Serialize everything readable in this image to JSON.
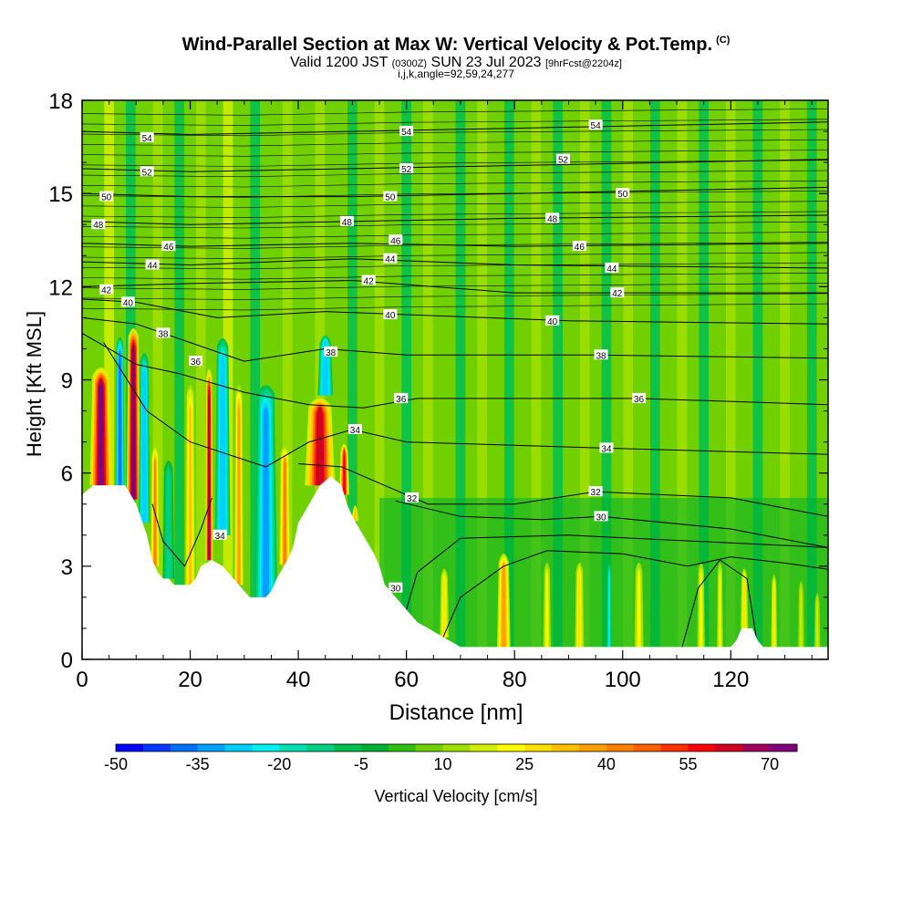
{
  "title": "Wind-Parallel Section at Max W: Vertical Velocity & Pot.Temp.",
  "title_mark": "(C)",
  "subtitle_pre": "Valid 1200 JST",
  "subtitle_small1": "(0300Z)",
  "subtitle_main": "SUN 23 Jul 2023",
  "subtitle_small2": "[9hrFcst@2204z]",
  "subtitle3": "i,j,k,angle=92,59,24,277",
  "chart_data": {
    "type": "heatmap",
    "xlabel": "Distance [nm]",
    "ylabel": "Height [Kft MSL]",
    "xlim": [
      0,
      138
    ],
    "ylim": [
      0,
      18
    ],
    "x_ticks": [
      0,
      20,
      40,
      60,
      80,
      100,
      120
    ],
    "y_ticks": [
      0,
      3,
      6,
      9,
      12,
      15,
      18
    ],
    "colorbar": {
      "label": "Vertical Velocity [cm/s]",
      "tick_labels": [
        -50,
        -35,
        -20,
        -5,
        10,
        25,
        40,
        55,
        70
      ],
      "levels": [
        -50,
        -45,
        -40,
        -35,
        -30,
        -25,
        -20,
        -15,
        -10,
        -5,
        0,
        5,
        10,
        15,
        20,
        25,
        30,
        35,
        40,
        45,
        50,
        55,
        60,
        65,
        70,
        75
      ],
      "colors": [
        "#0000ff",
        "#0038ff",
        "#0070ff",
        "#00a0ff",
        "#00d0ff",
        "#00f0f0",
        "#00e0b0",
        "#00d080",
        "#00c050",
        "#00b030",
        "#30c010",
        "#70d000",
        "#a0e000",
        "#d0f000",
        "#ffff00",
        "#ffe000",
        "#ffc000",
        "#ffa000",
        "#ff8000",
        "#ff6000",
        "#ff3000",
        "#ff0000",
        "#d00020",
        "#a00060",
        "#80007a"
      ]
    },
    "theta_contours": {
      "units": "potential temperature labels",
      "levels": [
        30,
        32,
        34,
        36,
        38,
        40,
        42,
        44,
        46,
        48,
        50,
        52,
        54
      ]
    },
    "terrain_kft": [
      [
        0,
        5.3
      ],
      [
        2,
        5.6
      ],
      [
        4,
        5.6
      ],
      [
        6,
        5.6
      ],
      [
        8,
        5.6
      ],
      [
        10,
        5.0
      ],
      [
        12,
        4.0
      ],
      [
        13,
        3.2
      ],
      [
        14,
        2.8
      ],
      [
        15,
        2.6
      ],
      [
        16,
        2.6
      ],
      [
        17,
        2.4
      ],
      [
        18,
        2.4
      ],
      [
        20,
        2.4
      ],
      [
        21,
        2.6
      ],
      [
        22,
        3.0
      ],
      [
        24,
        3.2
      ],
      [
        26,
        3.0
      ],
      [
        28,
        2.6
      ],
      [
        30,
        2.2
      ],
      [
        31,
        2.0
      ],
      [
        34,
        2.0
      ],
      [
        35,
        2.2
      ],
      [
        36,
        2.6
      ],
      [
        38,
        3.2
      ],
      [
        39,
        3.6
      ],
      [
        40,
        4.4
      ],
      [
        42,
        5.0
      ],
      [
        44,
        5.6
      ],
      [
        46,
        5.9
      ],
      [
        48,
        5.6
      ],
      [
        49,
        5.0
      ],
      [
        50,
        4.6
      ],
      [
        52,
        4.0
      ],
      [
        54,
        3.4
      ],
      [
        55,
        3.0
      ],
      [
        56,
        2.4
      ],
      [
        58,
        2.0
      ],
      [
        60,
        1.6
      ],
      [
        62,
        1.2
      ],
      [
        64,
        1.0
      ],
      [
        66,
        0.8
      ],
      [
        68,
        0.6
      ],
      [
        70,
        0.4
      ],
      [
        80,
        0.4
      ],
      [
        90,
        0.4
      ],
      [
        100,
        0.4
      ],
      [
        110,
        0.4
      ],
      [
        120,
        0.4
      ],
      [
        121,
        0.6
      ],
      [
        122,
        1.0
      ],
      [
        124,
        1.0
      ],
      [
        125,
        0.6
      ],
      [
        126,
        0.4
      ],
      [
        138,
        0.4
      ]
    ],
    "velocity_features": [
      {
        "x": 3.5,
        "top": 9.5,
        "bottom": 5.3,
        "w": 70,
        "width_nm": 3.0
      },
      {
        "x": 7,
        "top": 10.5,
        "bottom": 5.4,
        "w": -40,
        "width_nm": 1.2
      },
      {
        "x": 9.5,
        "top": 10.8,
        "bottom": 5.0,
        "w": 75,
        "width_nm": 1.8
      },
      {
        "x": 11.5,
        "top": 10.0,
        "bottom": 4.4,
        "w": -30,
        "width_nm": 1.5
      },
      {
        "x": 13.5,
        "top": 7.0,
        "bottom": 3.0,
        "w": 40,
        "width_nm": 1.2
      },
      {
        "x": 16,
        "top": 6.5,
        "bottom": 2.6,
        "w": -15,
        "width_nm": 1.5
      },
      {
        "x": 20,
        "top": 9.0,
        "bottom": 2.4,
        "w": 30,
        "width_nm": 1.3
      },
      {
        "x": 23.5,
        "top": 9.5,
        "bottom": 3.2,
        "w": 65,
        "width_nm": 1.0
      },
      {
        "x": 26,
        "top": 10.5,
        "bottom": 4.0,
        "w": -30,
        "width_nm": 2.0
      },
      {
        "x": 29,
        "top": 9.0,
        "bottom": 2.2,
        "w": 35,
        "width_nm": 1.2
      },
      {
        "x": 34,
        "top": 9.0,
        "bottom": 2.0,
        "w": -35,
        "width_nm": 3.0
      },
      {
        "x": 37.5,
        "top": 7.0,
        "bottom": 3.0,
        "w": 40,
        "width_nm": 1.5
      },
      {
        "x": 44,
        "top": 8.5,
        "bottom": 5.6,
        "w": 60,
        "width_nm": 4.0
      },
      {
        "x": 45,
        "top": 10.5,
        "bottom": 8.5,
        "w": -30,
        "width_nm": 2.0
      },
      {
        "x": 48.5,
        "top": 7.0,
        "bottom": 4.6,
        "w": 55,
        "width_nm": 1.3
      },
      {
        "x": 50.5,
        "top": 5.0,
        "bottom": 3.8,
        "w": 30,
        "width_nm": 1.0
      },
      {
        "x": 67,
        "top": 3.0,
        "bottom": 0.6,
        "w": 25,
        "width_nm": 1.2
      },
      {
        "x": 78,
        "top": 3.5,
        "bottom": 0.4,
        "w": 35,
        "width_nm": 1.8
      },
      {
        "x": 86,
        "top": 3.2,
        "bottom": 0.4,
        "w": 20,
        "width_nm": 1.0
      },
      {
        "x": 92,
        "top": 3.2,
        "bottom": 0.4,
        "w": 25,
        "width_nm": 1.2
      },
      {
        "x": 97.5,
        "top": 3.2,
        "bottom": 0.4,
        "w": -25,
        "width_nm": 0.6
      },
      {
        "x": 103,
        "top": 3.2,
        "bottom": 0.4,
        "w": 20,
        "width_nm": 1.2
      },
      {
        "x": 114.5,
        "top": 3.2,
        "bottom": 0.4,
        "w": 20,
        "width_nm": 1.0
      },
      {
        "x": 118,
        "top": 3.2,
        "bottom": 0.4,
        "w": 20,
        "width_nm": 0.8
      },
      {
        "x": 122.5,
        "top": 3.0,
        "bottom": 0.4,
        "w": 25,
        "width_nm": 1.0
      },
      {
        "x": 128,
        "top": 2.8,
        "bottom": 0.4,
        "w": 25,
        "width_nm": 0.8
      },
      {
        "x": 133,
        "top": 2.6,
        "bottom": 0.4,
        "w": 15,
        "width_nm": 0.8
      },
      {
        "x": 136,
        "top": 2.2,
        "bottom": 0.4,
        "w": 15,
        "width_nm": 0.8
      }
    ],
    "streak_features": [
      {
        "x": 5,
        "w": 15
      },
      {
        "x": 9,
        "w": -8
      },
      {
        "x": 14,
        "w": 10
      },
      {
        "x": 18,
        "w": -6
      },
      {
        "x": 22,
        "w": 12
      },
      {
        "x": 27,
        "w": 15
      },
      {
        "x": 32,
        "w": -8
      },
      {
        "x": 38,
        "w": 12
      },
      {
        "x": 44,
        "w": 10
      },
      {
        "x": 50,
        "w": -7
      },
      {
        "x": 55,
        "w": 12
      },
      {
        "x": 60,
        "w": -8
      },
      {
        "x": 64,
        "w": 10
      },
      {
        "x": 70,
        "w": -8
      },
      {
        "x": 74,
        "w": 12
      },
      {
        "x": 79,
        "w": -6
      },
      {
        "x": 84,
        "w": 10
      },
      {
        "x": 88,
        "w": -10
      },
      {
        "x": 93,
        "w": 10
      },
      {
        "x": 97,
        "w": -8
      },
      {
        "x": 101,
        "w": 12
      },
      {
        "x": 106,
        "w": -7
      },
      {
        "x": 111,
        "w": 14
      },
      {
        "x": 115,
        "w": -7
      },
      {
        "x": 120,
        "w": 12
      },
      {
        "x": 125,
        "w": -8
      },
      {
        "x": 130,
        "w": 12
      },
      {
        "x": 135,
        "w": -6
      }
    ],
    "contour_labels": [
      {
        "text": "54",
        "x": 12,
        "y": 16.8
      },
      {
        "text": "54",
        "x": 60,
        "y": 17.0
      },
      {
        "text": "54",
        "x": 95,
        "y": 17.2
      },
      {
        "text": "52",
        "x": 12,
        "y": 15.7
      },
      {
        "text": "52",
        "x": 60,
        "y": 15.8
      },
      {
        "text": "52",
        "x": 89,
        "y": 16.1
      },
      {
        "text": "50",
        "x": 4.5,
        "y": 14.9
      },
      {
        "text": "50",
        "x": 57,
        "y": 14.9
      },
      {
        "text": "50",
        "x": 100,
        "y": 15.0
      },
      {
        "text": "48",
        "x": 3,
        "y": 14.0
      },
      {
        "text": "48",
        "x": 49,
        "y": 14.1
      },
      {
        "text": "48",
        "x": 87,
        "y": 14.2
      },
      {
        "text": "46",
        "x": 16,
        "y": 13.3
      },
      {
        "text": "46",
        "x": 58,
        "y": 13.5
      },
      {
        "text": "46",
        "x": 92,
        "y": 13.3
      },
      {
        "text": "44",
        "x": 13,
        "y": 12.7
      },
      {
        "text": "44",
        "x": 57,
        "y": 12.9
      },
      {
        "text": "44",
        "x": 98,
        "y": 12.6
      },
      {
        "text": "42",
        "x": 4.5,
        "y": 11.9
      },
      {
        "text": "42",
        "x": 53,
        "y": 12.2
      },
      {
        "text": "42",
        "x": 99,
        "y": 11.8
      },
      {
        "text": "40",
        "x": 8.5,
        "y": 11.5
      },
      {
        "text": "40",
        "x": 57,
        "y": 11.1
      },
      {
        "text": "40",
        "x": 87,
        "y": 10.9
      },
      {
        "text": "38",
        "x": 15,
        "y": 10.5
      },
      {
        "text": "38",
        "x": 46,
        "y": 9.9
      },
      {
        "text": "38",
        "x": 96,
        "y": 9.8
      },
      {
        "text": "36",
        "x": 21,
        "y": 9.6
      },
      {
        "text": "36",
        "x": 59,
        "y": 8.4
      },
      {
        "text": "36",
        "x": 103,
        "y": 8.4
      },
      {
        "text": "34",
        "x": 50.5,
        "y": 7.4
      },
      {
        "text": "34",
        "x": 97,
        "y": 6.8
      },
      {
        "text": "34",
        "x": 25.5,
        "y": 4.0
      },
      {
        "text": "32",
        "x": 61,
        "y": 5.2
      },
      {
        "text": "32",
        "x": 95,
        "y": 5.4
      },
      {
        "text": "30",
        "x": 58,
        "y": 2.3
      },
      {
        "text": "30",
        "x": 96,
        "y": 4.6
      }
    ]
  }
}
